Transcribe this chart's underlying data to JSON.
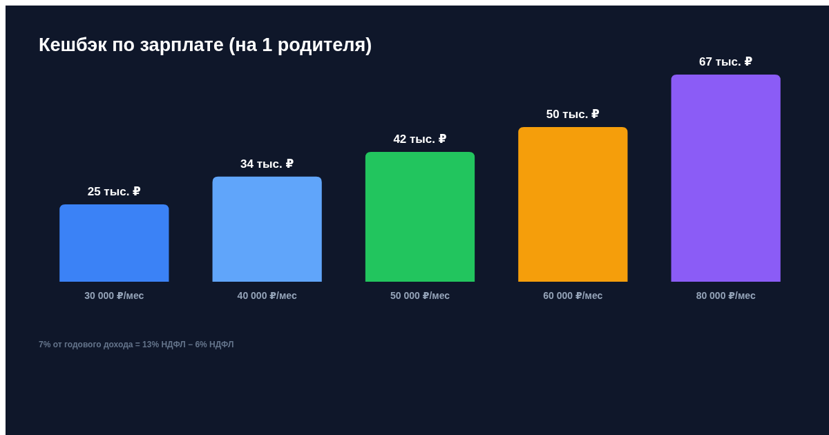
{
  "chart_data": {
    "type": "bar",
    "title": "Кешбэк по зарплате (на 1 родителя)",
    "categories": [
      "30 000 ₽/мес",
      "40 000 ₽/мес",
      "50 000 ₽/мес",
      "60 000 ₽/мес",
      "80 000 ₽/мес"
    ],
    "values": [
      25,
      34,
      42,
      50,
      67
    ],
    "value_labels": [
      "25 тыс. ₽",
      "34 тыс. ₽",
      "42 тыс. ₽",
      "50 тыс. ₽",
      "67 тыс. ₽"
    ],
    "colors": [
      "#3b82f6",
      "#60a5fa",
      "#22c55e",
      "#f59e0b",
      "#8b5cf6"
    ],
    "annotations": [
      "7% от годового дохода = 13% НДФЛ − 6% НДФЛ"
    ]
  }
}
